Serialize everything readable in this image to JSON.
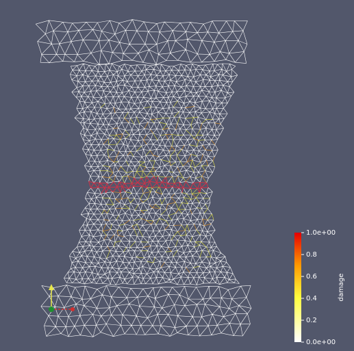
{
  "colorbar": {
    "title": "damage",
    "range": [
      0,
      1
    ],
    "ticks": [
      {
        "value": 1,
        "label": "1.0e+00"
      },
      0.8,
      0.6,
      0.4,
      0.2,
      {
        "value": 0,
        "label": "0.0e+00"
      }
    ]
  }
}
